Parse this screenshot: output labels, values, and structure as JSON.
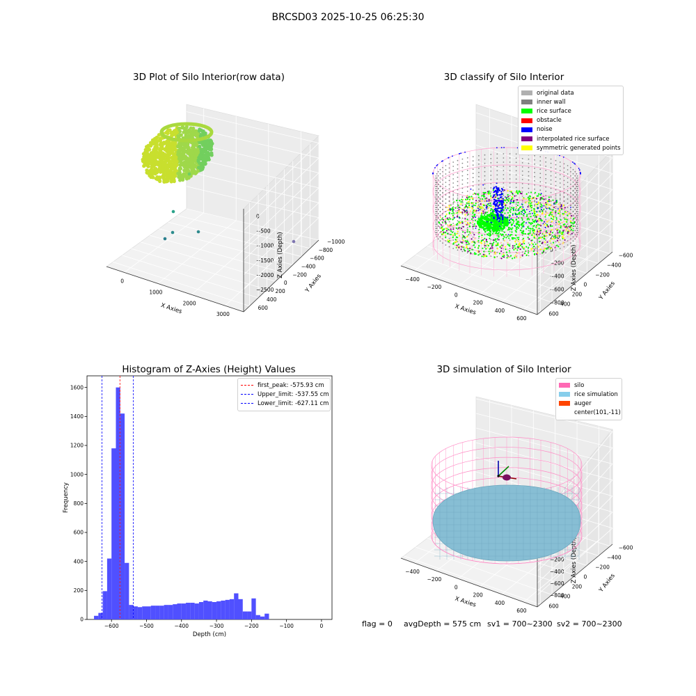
{
  "suptitle": "BRCSD03 2025-10-25 06:25:30",
  "chart_data": [
    {
      "type": "scatter",
      "title": "3D Plot of Silo Interior(row data)",
      "xlabel": "X Axies",
      "ylabel": "Y Axies",
      "zlabel": "Z Axies (Depth)",
      "x_ticks": [
        "0",
        "1000",
        "2000",
        "3000"
      ],
      "y_ticks": [
        "600",
        "400",
        "200",
        "0",
        "−200",
        "−400",
        "−600",
        "−800",
        "−1000"
      ],
      "z_ticks": [
        "0",
        "−500",
        "−1000",
        "−1500",
        "−2000",
        "−2500"
      ],
      "colormap": "viridis",
      "outlier_points": [
        {
          "x": 450,
          "y": 100,
          "z": -420
        },
        {
          "x": 250,
          "y": -200,
          "z": -1900
        },
        {
          "x": 300,
          "y": -350,
          "z": -2400
        },
        {
          "x": 1100,
          "y": 300,
          "z": -2450
        },
        {
          "x": 3300,
          "y": 350,
          "z": -2550
        },
        {
          "x": -100,
          "y": -400,
          "z": -2600
        }
      ]
    },
    {
      "type": "scatter",
      "title": "3D classify of Silo Interior",
      "xlabel": "X Axies",
      "ylabel": "Y Axies",
      "zlabel": "Z Axies (Depth)",
      "x_ticks": [
        "−400",
        "−200",
        "0",
        "200",
        "400",
        "600"
      ],
      "y_ticks": [
        "600",
        "400",
        "200",
        "0",
        "−200",
        "−400",
        "−600"
      ],
      "z_ticks": [
        "200",
        "0",
        "−200",
        "−400",
        "−600",
        "−800"
      ],
      "legend": [
        {
          "label": "original data",
          "color": "#b0b0b0"
        },
        {
          "label": "inner wall",
          "color": "#808080"
        },
        {
          "label": "rice surface",
          "color": "#00ff00"
        },
        {
          "label": "obstacle",
          "color": "#ff0000"
        },
        {
          "label": "noise",
          "color": "#0000ff"
        },
        {
          "label": "interpolated rice surface",
          "color": "#800080"
        },
        {
          "label": "symmetric generated points",
          "color": "#ffff00"
        }
      ]
    },
    {
      "type": "bar",
      "title": "Histogram of Z-Axies (Height) Values",
      "xlabel": "Depth (cm)",
      "ylabel": "Frequency",
      "xlim": [
        -670,
        30
      ],
      "ylim": [
        0,
        1680
      ],
      "x_ticks": [
        "−600",
        "−500",
        "−400",
        "−300",
        "−200",
        "−100",
        "0"
      ],
      "y_ticks": [
        "0",
        "200",
        "400",
        "600",
        "800",
        "1000",
        "1200",
        "1400",
        "1600"
      ],
      "bin_width": 12.5,
      "bin_start": -650,
      "values": [
        25,
        45,
        195,
        420,
        1180,
        1600,
        1420,
        390,
        100,
        90,
        85,
        90,
        90,
        95,
        95,
        95,
        100,
        100,
        105,
        110,
        110,
        115,
        115,
        110,
        120,
        130,
        125,
        120,
        125,
        130,
        135,
        140,
        180,
        140,
        55,
        55,
        145,
        30,
        20,
        40
      ],
      "bar_color": "#5050ff",
      "vlines": [
        {
          "label": "first_peak: -575.93 cm",
          "x": -575.93,
          "color": "#ff0000"
        },
        {
          "label": "Upper_limit: -537.55 cm",
          "x": -537.55,
          "color": "#0000ff"
        },
        {
          "label": "Lower_limit: -627.11 cm",
          "x": -627.11,
          "color": "#0000ff"
        }
      ],
      "legend_position": "top-right"
    },
    {
      "type": "scatter",
      "title": "3D simulation of Silo Interior",
      "xlabel": "X Axies",
      "ylabel": "Y Axies",
      "zlabel": "Z Axies (Depth)",
      "x_ticks": [
        "−400",
        "−200",
        "0",
        "200",
        "400",
        "600"
      ],
      "y_ticks": [
        "600",
        "400",
        "200",
        "0",
        "−200",
        "−400",
        "−600"
      ],
      "z_ticks": [
        "400",
        "200",
        "0",
        "−200",
        "−400",
        "−600",
        "−800"
      ],
      "legend": [
        {
          "label": "silo",
          "color": "#ff69b4"
        },
        {
          "label": "rice simulation",
          "color": "#87ceeb"
        },
        {
          "label": "auger",
          "color": "#ff4500"
        },
        {
          "label": "center(101,-11)",
          "color": ""
        }
      ]
    }
  ],
  "footer": {
    "flag": "flag = 0",
    "avg": "avgDepth = 575 cm",
    "sv1": "sv1 = 700~2300",
    "sv2": "sv2 = 700~2300"
  }
}
